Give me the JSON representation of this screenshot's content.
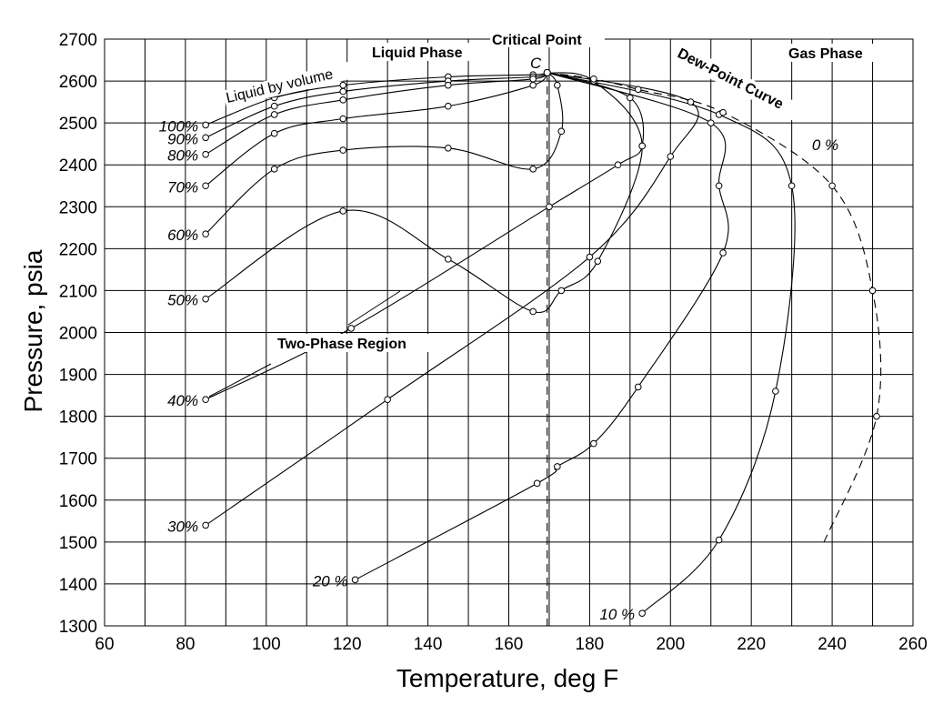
{
  "chart_data": {
    "type": "line",
    "xlabel": "Temperature, deg F",
    "ylabel": "Pressure, psia",
    "xlim": [
      60,
      260
    ],
    "ylim": [
      1300,
      2700
    ],
    "xticks": [
      60,
      80,
      100,
      120,
      140,
      160,
      180,
      200,
      220,
      240,
      260
    ],
    "yticks": [
      1300,
      1400,
      1500,
      1600,
      1700,
      1800,
      1900,
      2000,
      2100,
      2200,
      2300,
      2400,
      2500,
      2600,
      2700
    ],
    "grid": true,
    "critical_temperature_line": 169.5,
    "critical_point": {
      "x": 169.5,
      "y": 2620,
      "marker": "C"
    },
    "annotations": {
      "critical_point": "Critical Point",
      "liquid_phase": "Liquid Phase",
      "gas_phase": "Gas Phase",
      "dew_point_curve": "Dew-Point Curve",
      "two_phase_region": "Two-Phase Region",
      "liquid_by_volume": "Liquid by volume",
      "marker_c": "C"
    },
    "series": [
      {
        "label": "100%",
        "points": [
          [
            85,
            2495
          ],
          [
            102,
            2560
          ],
          [
            119,
            2590
          ],
          [
            145,
            2610
          ],
          [
            166,
            2615
          ],
          [
            169.5,
            2620
          ]
        ]
      },
      {
        "label": "90%",
        "points": [
          [
            85,
            2465
          ],
          [
            102,
            2540
          ],
          [
            119,
            2575
          ],
          [
            145,
            2600
          ],
          [
            166,
            2610
          ],
          [
            169.5,
            2620
          ]
        ]
      },
      {
        "label": "80%",
        "points": [
          [
            85,
            2425
          ],
          [
            102,
            2520
          ],
          [
            119,
            2555
          ],
          [
            145,
            2590
          ],
          [
            166,
            2605
          ],
          [
            169.5,
            2620
          ]
        ]
      },
      {
        "label": "70%",
        "points": [
          [
            85,
            2350
          ],
          [
            102,
            2475
          ],
          [
            119,
            2510
          ],
          [
            145,
            2540
          ],
          [
            166,
            2590
          ],
          [
            169.5,
            2620
          ]
        ]
      },
      {
        "label": "60%",
        "points": [
          [
            85,
            2235
          ],
          [
            102,
            2390
          ],
          [
            119,
            2435
          ],
          [
            145,
            2440
          ],
          [
            166,
            2390
          ],
          [
            173,
            2480
          ],
          [
            172,
            2590
          ],
          [
            169.5,
            2620
          ]
        ]
      },
      {
        "label": "50%",
        "points": [
          [
            85,
            2080
          ],
          [
            119,
            2290
          ],
          [
            145,
            2175
          ],
          [
            166,
            2050
          ],
          [
            173,
            2100
          ],
          [
            182,
            2170
          ],
          [
            193,
            2445
          ],
          [
            181,
            2600
          ],
          [
            169.5,
            2620
          ]
        ]
      },
      {
        "label": "40%",
        "points": [
          [
            85,
            1840
          ],
          [
            121,
            2010
          ],
          [
            170,
            2300
          ],
          [
            187,
            2400
          ],
          [
            193,
            2445
          ],
          [
            190,
            2560
          ],
          [
            169.5,
            2620
          ]
        ]
      },
      {
        "label": "30%",
        "points": [
          [
            85,
            1540
          ],
          [
            130,
            1840
          ],
          [
            180,
            2180
          ],
          [
            200,
            2420
          ],
          [
            205,
            2550
          ],
          [
            169.5,
            2620
          ]
        ]
      },
      {
        "label": "20 %",
        "points": [
          [
            122,
            1410
          ],
          [
            167,
            1640
          ],
          [
            172,
            1680
          ],
          [
            181,
            1735
          ],
          [
            192,
            1870
          ],
          [
            213,
            2190
          ],
          [
            212,
            2350
          ],
          [
            210,
            2500
          ],
          [
            169.5,
            2620
          ]
        ]
      },
      {
        "label": "10 %",
        "points": [
          [
            193,
            1330
          ],
          [
            212,
            1505
          ],
          [
            226,
            1860
          ],
          [
            230,
            2350
          ],
          [
            212,
            2520
          ],
          [
            169.5,
            2620
          ]
        ]
      },
      {
        "label": "0 %",
        "dashed": true,
        "points": [
          [
            238,
            1500
          ],
          [
            251,
            1800
          ],
          [
            250,
            2100
          ],
          [
            240,
            2350
          ],
          [
            213,
            2525
          ],
          [
            192,
            2580
          ],
          [
            181,
            2605
          ],
          [
            169.5,
            2620
          ]
        ]
      }
    ]
  }
}
